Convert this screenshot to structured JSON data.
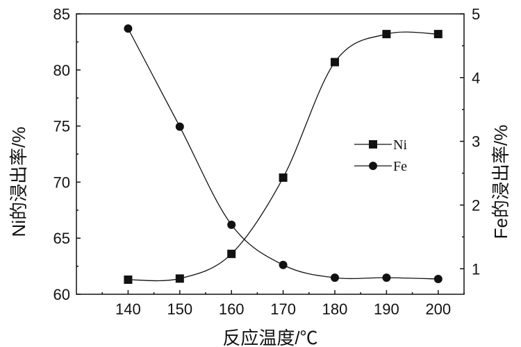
{
  "chart_data": {
    "type": "line",
    "title": "",
    "xlabel": "反应温度/℃",
    "ylabel": "Ni的浸出率/%",
    "y2label": "Fe的浸出率/%",
    "x": [
      140,
      150,
      160,
      170,
      180,
      190,
      200
    ],
    "xlim": [
      130,
      205
    ],
    "xticks": [
      "140",
      "150",
      "160",
      "170",
      "180",
      "190",
      "200"
    ],
    "ylim": [
      60,
      85
    ],
    "yticks": [
      "60",
      "65",
      "70",
      "75",
      "80",
      "85"
    ],
    "y2lim": [
      0.6,
      5.0
    ],
    "y2ticks": [
      "1",
      "2",
      "3",
      "4",
      "5"
    ],
    "y2tick_values": [
      1,
      2,
      3,
      4,
      5
    ],
    "grid": false,
    "legend": "center-right",
    "series": [
      {
        "name": "Ni",
        "axis": "left",
        "marker": "square",
        "values": [
          61.3,
          61.4,
          63.6,
          70.4,
          80.7,
          83.2,
          83.2
        ]
      },
      {
        "name": "Fe",
        "axis": "right",
        "marker": "circle",
        "values": [
          4.77,
          3.23,
          1.69,
          1.06,
          0.86,
          0.86,
          0.84
        ]
      }
    ]
  }
}
